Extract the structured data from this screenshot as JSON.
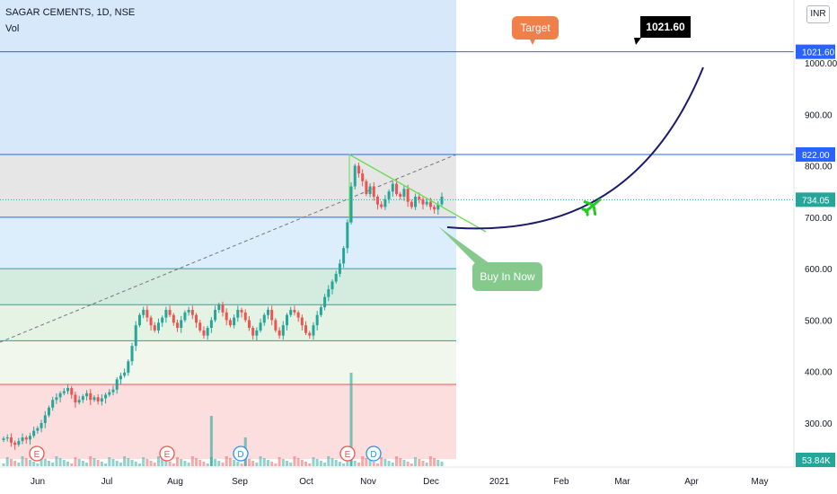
{
  "header": {
    "symbol_line": "SAGAR CEMENTS, 1D, NSE",
    "indicator": "Vol",
    "currency_button": "INR"
  },
  "colors": {
    "up_candle": "#26a69a",
    "down_candle": "#ef5350",
    "target_callout": "#f07f4a",
    "buy_callout": "#85c98d",
    "arc": "#1a1a6e",
    "trend_line": "#66dd55",
    "level_line": "#2962ff"
  },
  "annotations": {
    "target_label": "Target",
    "buy_label": "Buy In Now",
    "target_price_label": "1021.60"
  },
  "price_axis": {
    "ticks": [
      "1000.00",
      "900.00",
      "800.00",
      "700.00",
      "600.00",
      "500.00",
      "400.00",
      "300.00"
    ],
    "highlight_labels": [
      {
        "text": "1021.60",
        "color": "#2962ff"
      },
      {
        "text": "822.00",
        "color": "#2962ff"
      },
      {
        "text": "734.05",
        "color": "#26a69a"
      },
      {
        "text": "53.84K",
        "color": "#26a69a"
      }
    ]
  },
  "time_axis": {
    "labels": [
      "Jun",
      "Jul",
      "Aug",
      "Sep",
      "Oct",
      "Nov",
      "Dec",
      "2021",
      "Feb",
      "Mar",
      "Apr",
      "May"
    ]
  },
  "event_markers": [
    "E",
    "E",
    "D",
    "E",
    "D"
  ],
  "chart_data": {
    "type": "line",
    "title": "SAGAR CEMENTS, 1D, NSE",
    "xlabel": "",
    "ylabel": "",
    "ylim": [
      230,
      1100
    ],
    "horizontal_levels": [
      1021.6,
      822,
      734.05,
      700,
      600,
      530,
      460,
      375
    ],
    "zones": [
      {
        "from": 822,
        "to": 1100,
        "color": "#d7e8fb"
      },
      {
        "from": 700,
        "to": 822,
        "color": "#e6e6e6"
      },
      {
        "from": 600,
        "to": 700,
        "color": "#dceefc"
      },
      {
        "from": 530,
        "to": 600,
        "color": "#d3ecdf"
      },
      {
        "from": 460,
        "to": 530,
        "color": "#e4f3e4"
      },
      {
        "from": 375,
        "to": 460,
        "color": "#f1f7ec"
      },
      {
        "from": 230,
        "to": 375,
        "color": "#fcdede"
      }
    ],
    "series": [
      {
        "values": [
          270,
          272,
          262,
          258,
          265,
          272,
          268,
          275,
          285,
          290,
          300,
          315,
          330,
          345,
          350,
          358,
          362,
          368,
          355,
          340,
          345,
          352,
          358,
          345,
          350,
          342,
          348,
          355,
          360,
          365,
          385,
          392,
          398,
          420,
          450,
          490,
          510,
          520,
          505,
          490,
          480,
          495,
          505,
          520,
          510,
          495,
          485,
          500,
          515,
          520,
          510,
          495,
          480,
          470,
          485,
          500,
          520,
          530,
          515,
          500,
          490,
          505,
          520,
          515,
          500,
          485,
          470,
          480,
          495,
          510,
          520,
          500,
          480,
          470,
          490,
          510,
          520,
          515,
          505,
          490,
          475,
          470,
          490,
          510,
          525,
          545,
          560,
          575,
          590,
          610,
          640,
          690,
          760,
          800,
          785,
          770,
          745,
          760,
          740,
          725,
          720,
          735,
          750,
          765,
          745,
          740,
          755,
          730,
          720,
          740,
          735,
          725,
          730,
          720,
          715,
          725,
          740
        ]
      }
    ],
    "volume_spikes": [
      {
        "index": 55,
        "height": 0.35
      },
      {
        "index": 64,
        "height": 0.2
      },
      {
        "index": 92,
        "height": 0.65
      }
    ]
  }
}
